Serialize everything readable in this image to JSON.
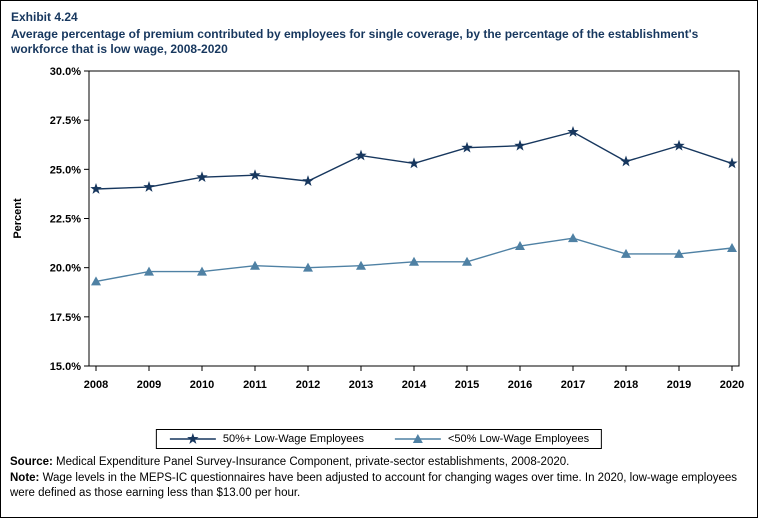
{
  "header": {
    "exhibit": "Exhibit 4.24",
    "title": "Average percentage of premium contributed by employees for single coverage, by the percentage of the establishment's workforce that is low wage, 2008-2020"
  },
  "chart_data": {
    "type": "line",
    "x": [
      "2008",
      "2009",
      "2010",
      "2011",
      "2012",
      "2013",
      "2014",
      "2015",
      "2016",
      "2017",
      "2018",
      "2019",
      "2020"
    ],
    "series": [
      {
        "name": "50%+ Low-Wage Employees",
        "marker": "star",
        "color": "#17375E",
        "values": [
          24.0,
          24.1,
          24.6,
          24.7,
          24.4,
          25.7,
          25.3,
          26.1,
          26.2,
          26.9,
          25.4,
          26.2,
          25.3
        ]
      },
      {
        "name": "<50% Low-Wage Employees",
        "marker": "triangle",
        "color": "#4F81A4",
        "values": [
          19.3,
          19.8,
          19.8,
          20.1,
          20.0,
          20.1,
          20.3,
          20.3,
          21.1,
          21.5,
          20.7,
          20.7,
          21.0
        ]
      }
    ],
    "ylabel": "Percent",
    "ylim": [
      15.0,
      30.0
    ],
    "yticks": [
      15.0,
      17.5,
      20.0,
      22.5,
      25.0,
      27.5,
      30.0
    ],
    "ytick_labels": [
      "15.0%",
      "17.5%",
      "20.0%",
      "22.5%",
      "25.0%",
      "27.5%",
      "30.0%"
    ],
    "grid": false,
    "legend_position": "bottom"
  },
  "footer": {
    "source_label": "Source:",
    "source_text": " Medical Expenditure Panel Survey-Insurance Component, private-sector establishments, 2008-2020.",
    "note_label": "Note:",
    "note_text": " Wage levels in the MEPS-IC questionnaires have been adjusted to account for changing wages over time.  In 2020, low-wage employees were defined as those earning less than $13.00 per hour."
  }
}
